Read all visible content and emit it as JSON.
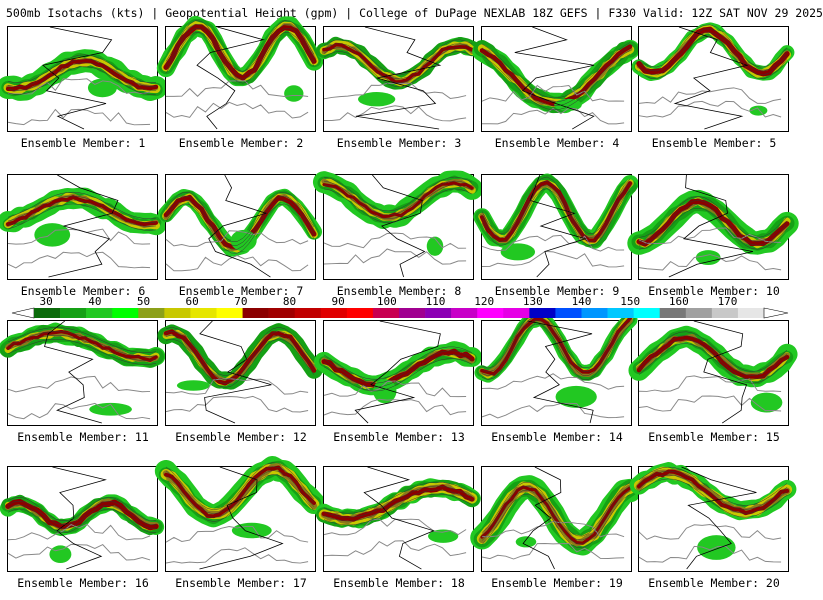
{
  "header": {
    "title": "500mb Isotachs (kts) | Geopotential Height (gpm) | College of DuPage NEXLAB   18Z GEFS | F330 Valid: 12Z SAT NOV 29 2025"
  },
  "panels": [
    {
      "label": "Ensemble Member: 1"
    },
    {
      "label": "Ensemble Member: 2"
    },
    {
      "label": "Ensemble Member: 3"
    },
    {
      "label": "Ensemble Member: 4"
    },
    {
      "label": "Ensemble Member: 5"
    },
    {
      "label": "Ensemble Member: 6"
    },
    {
      "label": "Ensemble Member: 7"
    },
    {
      "label": "Ensemble Member: 8"
    },
    {
      "label": "Ensemble Member: 9"
    },
    {
      "label": "Ensemble Member: 10"
    },
    {
      "label": "Ensemble Member: 11"
    },
    {
      "label": "Ensemble Member: 12"
    },
    {
      "label": "Ensemble Member: 13"
    },
    {
      "label": "Ensemble Member: 14"
    },
    {
      "label": "Ensemble Member: 15"
    },
    {
      "label": "Ensemble Member: 16"
    },
    {
      "label": "Ensemble Member: 17"
    },
    {
      "label": "Ensemble Member: 18"
    },
    {
      "label": "Ensemble Member: 19"
    },
    {
      "label": "Ensemble Member: 20"
    }
  ],
  "colorbar": {
    "ticks": [
      "30",
      "40",
      "50",
      "60",
      "70",
      "80",
      "90",
      "100",
      "110",
      "120",
      "130",
      "140",
      "150",
      "160",
      "170"
    ],
    "colors": [
      "#0b6b0b",
      "#15a015",
      "#22c822",
      "#00ff00",
      "#8ca019",
      "#c8c800",
      "#e6e600",
      "#ffff00",
      "#8b0000",
      "#a00000",
      "#c00000",
      "#e00000",
      "#ff0000",
      "#c80050",
      "#a00090",
      "#8c00b4",
      "#c800c8",
      "#ff00ff",
      "#e600e6",
      "#0000c8",
      "#0050ff",
      "#0096ff",
      "#00c8ff",
      "#00ffff",
      "#787878",
      "#a0a0a0",
      "#c8c8c8",
      "#e6e6e6"
    ]
  }
}
